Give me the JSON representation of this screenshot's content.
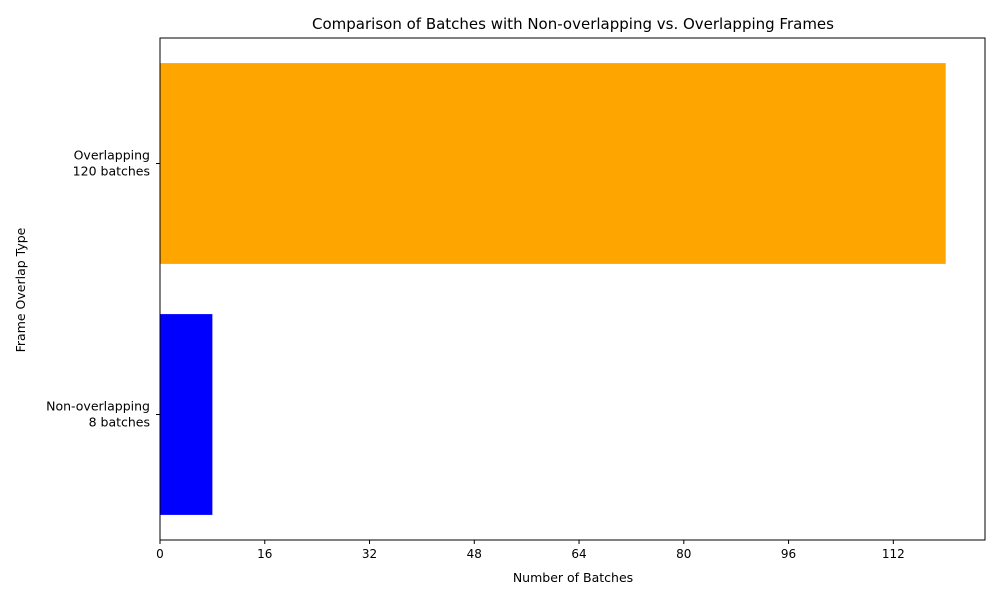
{
  "chart_data": {
    "type": "bar",
    "orientation": "horizontal",
    "title": "Comparison of Batches with Non-overlapping vs. Overlapping Frames",
    "xlabel": "Number of Batches",
    "ylabel": "Frame Overlap Type",
    "categories": [
      [
        "Non-overlapping",
        "8 batches"
      ],
      [
        "Overlapping",
        "120 batches"
      ]
    ],
    "values": [
      8,
      120
    ],
    "colors": [
      "#0000ff",
      "#ffa500"
    ],
    "xlim": [
      0,
      126
    ],
    "xticks": [
      0,
      16,
      32,
      48,
      64,
      80,
      96,
      112
    ],
    "grid": false,
    "legend": "none"
  }
}
